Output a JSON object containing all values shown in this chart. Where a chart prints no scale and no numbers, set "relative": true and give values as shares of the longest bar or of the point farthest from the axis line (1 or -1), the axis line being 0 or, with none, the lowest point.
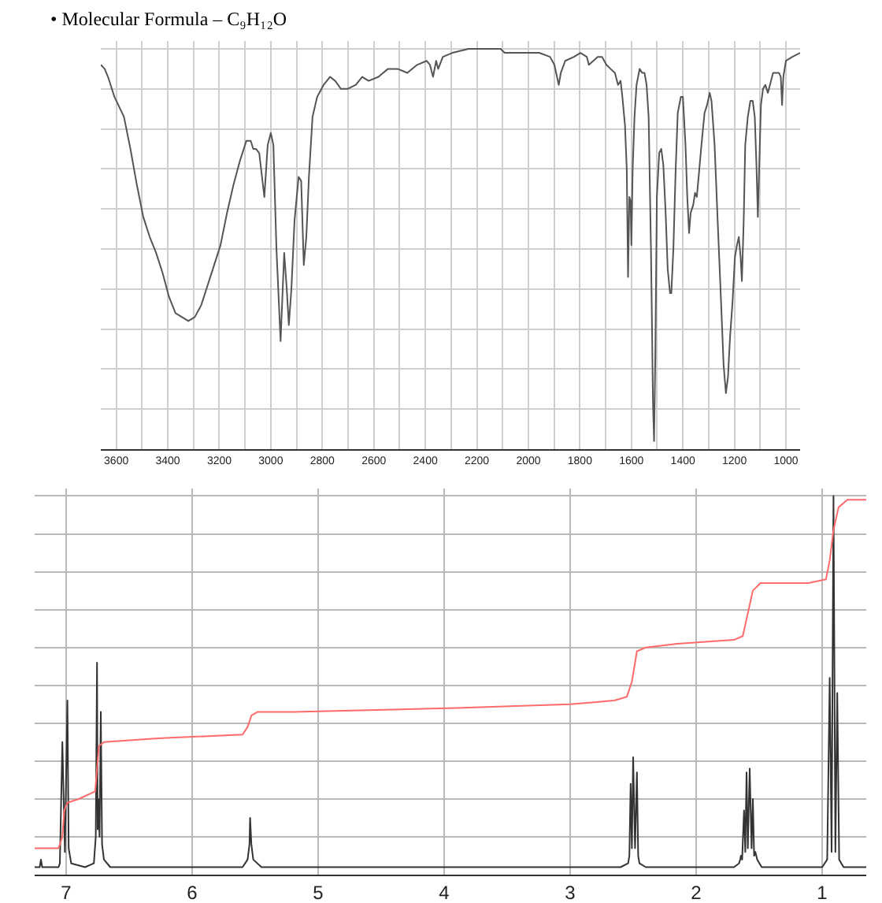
{
  "chart_data": [
    {
      "type": "line",
      "title": "• Molecular Formula – C₉H₁₂O",
      "relative": true,
      "grid": true,
      "xlim": [
        3660,
        945
      ],
      "xticks": [
        3600,
        {
          "value": 3500,
          "label": null
        },
        3400,
        {
          "value": 3300,
          "label": null
        },
        3200,
        {
          "value": 3100,
          "label": null
        },
        3000,
        {
          "value": 2900,
          "label": null
        },
        2800,
        {
          "value": 2700,
          "label": null
        },
        2600,
        {
          "value": 2500,
          "label": null
        },
        2400,
        {
          "value": 2300,
          "label": null
        },
        2200,
        {
          "value": 2100,
          "label": null
        },
        2000,
        {
          "value": 1900,
          "label": null
        },
        1800,
        {
          "value": 1700,
          "label": null
        },
        1600,
        {
          "value": 1500,
          "label": null
        },
        1400,
        {
          "value": 1300,
          "label": null
        },
        1200,
        {
          "value": 1100,
          "label": null
        },
        1000
      ],
      "x": [
        3660,
        3645,
        3632,
        3607,
        3570,
        3545,
        3520,
        3495,
        3470,
        3445,
        3420,
        3395,
        3370,
        3345,
        3320,
        3295,
        3270,
        3245,
        3220,
        3195,
        3170,
        3145,
        3120,
        3095,
        3078,
        3068,
        3058,
        3045,
        3025,
        3012,
        3000,
        2990,
        2978,
        2962,
        2948,
        2938,
        2930,
        2920,
        2908,
        2892,
        2882,
        2872,
        2862,
        2852,
        2838,
        2820,
        2795,
        2770,
        2750,
        2728,
        2702,
        2670,
        2645,
        2620,
        2582,
        2545,
        2508,
        2470,
        2432,
        2395,
        2382,
        2370,
        2358,
        2350,
        2332,
        2295,
        2232,
        2182,
        2108,
        2092,
        2042,
        2000,
        1958,
        1916,
        1899,
        1882,
        1874,
        1857,
        1823,
        1798,
        1773,
        1765,
        1748,
        1731,
        1714,
        1697,
        1681,
        1664,
        1652,
        1642,
        1635,
        1625,
        1618,
        1613,
        1608,
        1603,
        1600,
        1595,
        1588,
        1580,
        1568,
        1558,
        1549,
        1541,
        1533,
        1524,
        1516,
        1512,
        1507,
        1501,
        1492,
        1484,
        1476,
        1467,
        1459,
        1450,
        1445,
        1437,
        1428,
        1420,
        1408,
        1400,
        1390,
        1383,
        1376,
        1370,
        1360,
        1353,
        1346,
        1339,
        1328,
        1316,
        1306,
        1296,
        1289,
        1277,
        1265,
        1252,
        1242,
        1233,
        1225,
        1217,
        1207,
        1198,
        1190,
        1183,
        1176,
        1171,
        1164,
        1158,
        1148,
        1138,
        1129,
        1121,
        1114,
        1109,
        1104,
        1097,
        1089,
        1080,
        1070,
        1062,
        1050,
        1037,
        1027,
        1020,
        1015,
        1010,
        1000,
        975,
        945
      ],
      "series": [
        {
          "color": "#555555",
          "values": [
            0.96,
            0.95,
            0.93,
            0.88,
            0.83,
            0.75,
            0.66,
            0.58,
            0.53,
            0.49,
            0.44,
            0.38,
            0.34,
            0.33,
            0.32,
            0.33,
            0.36,
            0.41,
            0.46,
            0.51,
            0.59,
            0.66,
            0.72,
            0.77,
            0.77,
            0.75,
            0.75,
            0.74,
            0.63,
            0.76,
            0.79,
            0.76,
            0.5,
            0.27,
            0.49,
            0.4,
            0.31,
            0.4,
            0.57,
            0.68,
            0.67,
            0.46,
            0.53,
            0.68,
            0.83,
            0.88,
            0.91,
            0.93,
            0.92,
            0.9,
            0.9,
            0.91,
            0.93,
            0.92,
            0.93,
            0.95,
            0.95,
            0.94,
            0.96,
            0.97,
            0.96,
            0.93,
            0.97,
            0.95,
            0.98,
            0.99,
            1.0,
            1.0,
            1.0,
            0.99,
            0.99,
            0.99,
            0.99,
            0.98,
            0.96,
            0.91,
            0.94,
            0.97,
            0.98,
            0.99,
            0.98,
            0.96,
            0.97,
            0.98,
            0.98,
            0.96,
            0.95,
            0.94,
            0.91,
            0.92,
            0.88,
            0.81,
            0.7,
            0.43,
            0.63,
            0.62,
            0.51,
            0.7,
            0.83,
            0.91,
            0.95,
            0.94,
            0.94,
            0.91,
            0.83,
            0.5,
            0.11,
            0.02,
            0.24,
            0.63,
            0.74,
            0.75,
            0.71,
            0.59,
            0.45,
            0.39,
            0.39,
            0.5,
            0.7,
            0.84,
            0.88,
            0.88,
            0.76,
            0.63,
            0.54,
            0.59,
            0.61,
            0.64,
            0.63,
            0.68,
            0.76,
            0.84,
            0.86,
            0.89,
            0.87,
            0.76,
            0.57,
            0.37,
            0.21,
            0.14,
            0.18,
            0.28,
            0.37,
            0.48,
            0.51,
            0.53,
            0.48,
            0.42,
            0.57,
            0.76,
            0.83,
            0.87,
            0.87,
            0.83,
            0.7,
            0.58,
            0.7,
            0.86,
            0.9,
            0.91,
            0.89,
            0.91,
            0.94,
            0.94,
            0.94,
            0.93,
            0.86,
            0.93,
            0.97,
            0.98,
            0.99
          ]
        }
      ]
    },
    {
      "type": "line",
      "relative": true,
      "grid": true,
      "xlim": [
        7.25,
        0.65
      ],
      "xticks": [
        7,
        6,
        5,
        4,
        3,
        2,
        1
      ],
      "series": [
        {
          "color": "#333333",
          "x": [
            7.25,
            7.21,
            7.2,
            7.19,
            7.06,
            7.05,
            7.03,
            7.01,
            6.99,
            6.98,
            6.96,
            6.85,
            6.78,
            6.765,
            6.755,
            6.75,
            6.745,
            6.735,
            6.725,
            6.715,
            6.7,
            6.65,
            5.6,
            5.56,
            5.545,
            5.54,
            5.53,
            5.515,
            5.45,
            2.6,
            2.54,
            2.53,
            2.52,
            2.51,
            2.5,
            2.485,
            2.47,
            2.46,
            2.45,
            2.4,
            1.7,
            1.66,
            1.65,
            1.645,
            1.635,
            1.62,
            1.61,
            1.6,
            1.59,
            1.575,
            1.56,
            1.55,
            1.54,
            1.53,
            1.515,
            1.48,
            1.0,
            0.96,
            0.94,
            0.925,
            0.91,
            0.895,
            0.88,
            0.865,
            0.83,
            0.65
          ],
          "values": [
            0.02,
            0.02,
            0.04,
            0.02,
            0.02,
            0.03,
            0.35,
            0.06,
            0.46,
            0.07,
            0.03,
            0.02,
            0.03,
            0.1,
            0.56,
            0.12,
            0.2,
            0.1,
            0.43,
            0.08,
            0.04,
            0.02,
            0.02,
            0.04,
            0.08,
            0.15,
            0.08,
            0.04,
            0.02,
            0.02,
            0.03,
            0.05,
            0.24,
            0.07,
            0.31,
            0.07,
            0.27,
            0.05,
            0.03,
            0.02,
            0.02,
            0.03,
            0.04,
            0.05,
            0.04,
            0.17,
            0.06,
            0.27,
            0.07,
            0.28,
            0.07,
            0.2,
            0.05,
            0.06,
            0.04,
            0.02,
            0.02,
            0.04,
            0.52,
            0.06,
            1.0,
            0.06,
            0.48,
            0.04,
            0.02,
            0.02
          ]
        },
        {
          "color": "#ff6b6b",
          "x": [
            7.25,
            7.06,
            7.03,
            7.015,
            6.99,
            6.9,
            6.77,
            6.755,
            6.74,
            6.7,
            6.27,
            5.6,
            5.56,
            5.53,
            5.48,
            5.19,
            3.9,
            3.0,
            2.65,
            2.55,
            2.51,
            2.47,
            2.4,
            2.15,
            1.7,
            1.63,
            1.59,
            1.55,
            1.49,
            1.11,
            0.97,
            0.94,
            0.91,
            0.87,
            0.8,
            0.65
          ],
          "values": [
            0.07,
            0.07,
            0.1,
            0.17,
            0.19,
            0.2,
            0.22,
            0.28,
            0.34,
            0.35,
            0.36,
            0.37,
            0.39,
            0.42,
            0.43,
            0.43,
            0.44,
            0.45,
            0.46,
            0.47,
            0.51,
            0.59,
            0.6,
            0.61,
            0.62,
            0.63,
            0.69,
            0.75,
            0.77,
            0.77,
            0.78,
            0.83,
            0.91,
            0.97,
            0.99,
            0.99
          ]
        }
      ]
    }
  ]
}
